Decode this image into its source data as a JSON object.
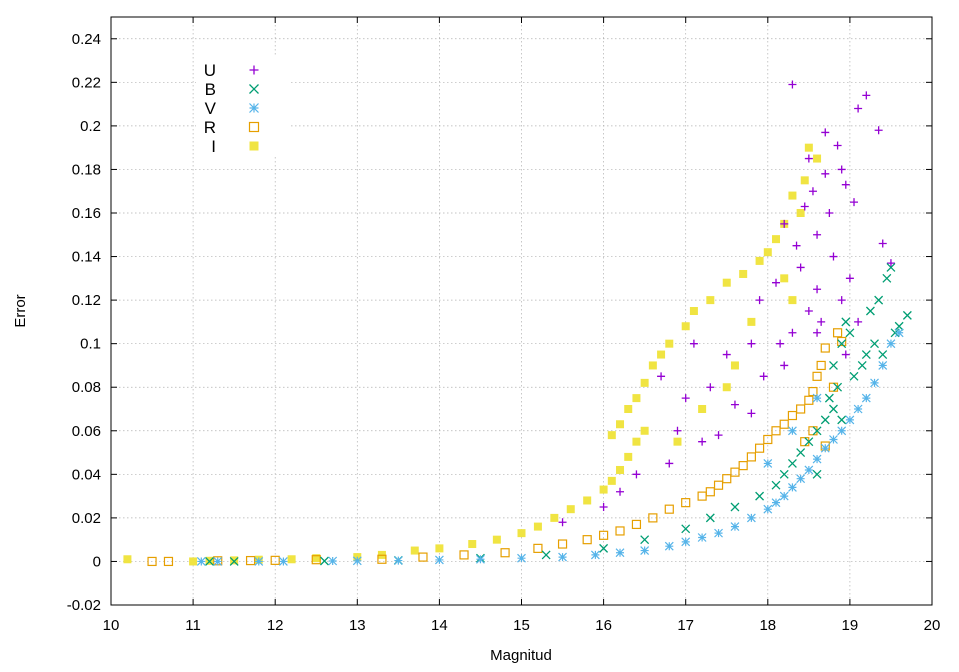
{
  "chart_data": {
    "type": "scatter",
    "title": "",
    "xlabel": "Magnitud",
    "ylabel": "Error",
    "xlim": [
      10,
      20
    ],
    "ylim": [
      -0.02,
      0.25
    ],
    "grid": true,
    "x_ticks": [
      "10",
      "11",
      "12",
      "13",
      "14",
      "15",
      "16",
      "17",
      "18",
      "19",
      "20"
    ],
    "y_ticks": [
      "-0.02",
      "0",
      "0.02",
      "0.04",
      "0.06",
      "0.08",
      "0.1",
      "0.12",
      "0.14",
      "0.16",
      "0.18",
      "0.2",
      "0.22",
      "0.24"
    ],
    "legend_position": "top-left",
    "series": [
      {
        "name": "U",
        "marker": "plus",
        "color": "#9400d3",
        "points": [
          [
            18.3,
            0.219
          ],
          [
            19.2,
            0.214
          ],
          [
            19.1,
            0.208
          ],
          [
            19.35,
            0.198
          ],
          [
            18.7,
            0.197
          ],
          [
            18.85,
            0.191
          ],
          [
            19.4,
            0.146
          ],
          [
            19.5,
            0.137
          ],
          [
            18.9,
            0.18
          ],
          [
            18.95,
            0.173
          ],
          [
            18.55,
            0.17
          ],
          [
            18.45,
            0.163
          ],
          [
            18.75,
            0.16
          ],
          [
            18.2,
            0.155
          ],
          [
            18.6,
            0.15
          ],
          [
            18.8,
            0.14
          ],
          [
            18.4,
            0.135
          ],
          [
            19.0,
            0.13
          ],
          [
            18.9,
            0.12
          ],
          [
            18.1,
            0.128
          ],
          [
            17.9,
            0.12
          ],
          [
            18.65,
            0.11
          ],
          [
            18.3,
            0.105
          ],
          [
            17.8,
            0.1
          ],
          [
            17.1,
            0.1
          ],
          [
            17.5,
            0.095
          ],
          [
            16.7,
            0.085
          ],
          [
            17.3,
            0.08
          ],
          [
            17.0,
            0.075
          ],
          [
            17.6,
            0.072
          ],
          [
            17.8,
            0.068
          ],
          [
            16.9,
            0.06
          ],
          [
            17.4,
            0.058
          ],
          [
            16.4,
            0.04
          ],
          [
            16.8,
            0.045
          ],
          [
            16.0,
            0.025
          ],
          [
            15.5,
            0.018
          ],
          [
            16.2,
            0.032
          ],
          [
            17.2,
            0.055
          ],
          [
            18.2,
            0.09
          ],
          [
            18.5,
            0.115
          ],
          [
            18.6,
            0.125
          ],
          [
            18.7,
            0.178
          ],
          [
            18.35,
            0.145
          ],
          [
            19.05,
            0.165
          ],
          [
            18.95,
            0.095
          ],
          [
            18.5,
            0.185
          ],
          [
            18.6,
            0.105
          ],
          [
            19.1,
            0.11
          ],
          [
            18.15,
            0.1
          ],
          [
            17.95,
            0.085
          ]
        ]
      },
      {
        "name": "B",
        "marker": "cross",
        "color": "#009e73",
        "points": [
          [
            19.7,
            0.113
          ],
          [
            19.6,
            0.108
          ],
          [
            19.55,
            0.105
          ],
          [
            19.45,
            0.13
          ],
          [
            19.5,
            0.135
          ],
          [
            19.35,
            0.12
          ],
          [
            19.25,
            0.115
          ],
          [
            19.3,
            0.1
          ],
          [
            19.4,
            0.095
          ],
          [
            19.15,
            0.09
          ],
          [
            19.05,
            0.085
          ],
          [
            18.95,
            0.11
          ],
          [
            19.0,
            0.105
          ],
          [
            18.9,
            0.1
          ],
          [
            18.85,
            0.08
          ],
          [
            18.75,
            0.075
          ],
          [
            18.8,
            0.07
          ],
          [
            18.7,
            0.065
          ],
          [
            18.6,
            0.06
          ],
          [
            18.5,
            0.055
          ],
          [
            18.4,
            0.05
          ],
          [
            18.3,
            0.045
          ],
          [
            18.2,
            0.04
          ],
          [
            18.1,
            0.035
          ],
          [
            17.9,
            0.03
          ],
          [
            17.6,
            0.025
          ],
          [
            17.3,
            0.02
          ],
          [
            17.0,
            0.015
          ],
          [
            16.5,
            0.01
          ],
          [
            16.0,
            0.006
          ],
          [
            15.3,
            0.003
          ],
          [
            14.5,
            0.0015
          ],
          [
            13.5,
            0.0005
          ],
          [
            12.6,
            0.0002
          ],
          [
            11.5,
            0.0
          ],
          [
            11.2,
            0.0
          ],
          [
            18.6,
            0.04
          ],
          [
            18.9,
            0.065
          ],
          [
            19.2,
            0.095
          ],
          [
            18.8,
            0.09
          ]
        ]
      },
      {
        "name": "V",
        "marker": "star",
        "color": "#56b4e9",
        "points": [
          [
            19.6,
            0.105
          ],
          [
            19.5,
            0.1
          ],
          [
            19.4,
            0.09
          ],
          [
            19.3,
            0.082
          ],
          [
            19.2,
            0.075
          ],
          [
            19.1,
            0.07
          ],
          [
            19.0,
            0.065
          ],
          [
            18.9,
            0.06
          ],
          [
            18.8,
            0.056
          ],
          [
            18.7,
            0.052
          ],
          [
            18.6,
            0.047
          ],
          [
            18.5,
            0.042
          ],
          [
            18.4,
            0.038
          ],
          [
            18.3,
            0.034
          ],
          [
            18.2,
            0.03
          ],
          [
            18.1,
            0.027
          ],
          [
            18.0,
            0.024
          ],
          [
            17.8,
            0.02
          ],
          [
            17.6,
            0.016
          ],
          [
            17.4,
            0.013
          ],
          [
            17.2,
            0.011
          ],
          [
            17.0,
            0.009
          ],
          [
            16.8,
            0.007
          ],
          [
            16.5,
            0.005
          ],
          [
            16.2,
            0.004
          ],
          [
            15.9,
            0.003
          ],
          [
            15.5,
            0.002
          ],
          [
            15.0,
            0.0015
          ],
          [
            14.5,
            0.001
          ],
          [
            14.0,
            0.0007
          ],
          [
            13.5,
            0.0004
          ],
          [
            13.0,
            0.0003
          ],
          [
            12.7,
            0.0002
          ],
          [
            12.1,
            0.0
          ],
          [
            11.8,
            0.0
          ],
          [
            11.3,
            0.0
          ],
          [
            11.1,
            0.0
          ],
          [
            18.3,
            0.06
          ],
          [
            18.0,
            0.045
          ],
          [
            18.6,
            0.075
          ]
        ]
      },
      {
        "name": "R",
        "marker": "square-open",
        "color": "#e69f00",
        "points": [
          [
            18.85,
            0.105
          ],
          [
            18.9,
            0.101
          ],
          [
            18.7,
            0.098
          ],
          [
            18.65,
            0.09
          ],
          [
            18.6,
            0.085
          ],
          [
            18.8,
            0.08
          ],
          [
            18.55,
            0.078
          ],
          [
            18.5,
            0.074
          ],
          [
            18.4,
            0.07
          ],
          [
            18.3,
            0.067
          ],
          [
            18.2,
            0.063
          ],
          [
            18.1,
            0.06
          ],
          [
            18.0,
            0.056
          ],
          [
            17.9,
            0.052
          ],
          [
            17.8,
            0.048
          ],
          [
            17.7,
            0.044
          ],
          [
            17.6,
            0.041
          ],
          [
            17.5,
            0.038
          ],
          [
            17.4,
            0.035
          ],
          [
            17.3,
            0.032
          ],
          [
            17.2,
            0.03
          ],
          [
            17.0,
            0.027
          ],
          [
            16.8,
            0.024
          ],
          [
            16.6,
            0.02
          ],
          [
            16.4,
            0.017
          ],
          [
            16.2,
            0.014
          ],
          [
            16.0,
            0.012
          ],
          [
            15.8,
            0.01
          ],
          [
            15.5,
            0.008
          ],
          [
            15.2,
            0.006
          ],
          [
            14.8,
            0.004
          ],
          [
            14.3,
            0.003
          ],
          [
            13.8,
            0.002
          ],
          [
            13.3,
            0.001
          ],
          [
            12.5,
            0.0008
          ],
          [
            12.0,
            0.0005
          ],
          [
            11.7,
            0.0004
          ],
          [
            11.3,
            0.0003
          ],
          [
            10.7,
            0.0
          ],
          [
            10.5,
            0.0
          ],
          [
            18.7,
            0.053
          ],
          [
            18.55,
            0.06
          ],
          [
            18.45,
            0.055
          ]
        ]
      },
      {
        "name": "I",
        "marker": "square-filled",
        "color": "#f0e442",
        "points": [
          [
            18.5,
            0.19
          ],
          [
            18.6,
            0.185
          ],
          [
            18.45,
            0.175
          ],
          [
            18.3,
            0.168
          ],
          [
            18.4,
            0.16
          ],
          [
            18.2,
            0.155
          ],
          [
            18.1,
            0.148
          ],
          [
            18.0,
            0.142
          ],
          [
            17.9,
            0.138
          ],
          [
            17.7,
            0.132
          ],
          [
            17.5,
            0.128
          ],
          [
            17.3,
            0.12
          ],
          [
            17.1,
            0.115
          ],
          [
            17.0,
            0.108
          ],
          [
            16.8,
            0.1
          ],
          [
            16.7,
            0.095
          ],
          [
            16.6,
            0.09
          ],
          [
            16.5,
            0.082
          ],
          [
            16.4,
            0.075
          ],
          [
            16.3,
            0.07
          ],
          [
            16.2,
            0.063
          ],
          [
            16.1,
            0.058
          ],
          [
            16.5,
            0.06
          ],
          [
            16.4,
            0.055
          ],
          [
            16.3,
            0.048
          ],
          [
            16.2,
            0.042
          ],
          [
            16.1,
            0.037
          ],
          [
            16.0,
            0.033
          ],
          [
            15.8,
            0.028
          ],
          [
            15.6,
            0.024
          ],
          [
            15.4,
            0.02
          ],
          [
            15.2,
            0.016
          ],
          [
            15.0,
            0.013
          ],
          [
            14.7,
            0.01
          ],
          [
            14.4,
            0.008
          ],
          [
            14.0,
            0.006
          ],
          [
            13.7,
            0.005
          ],
          [
            13.3,
            0.003
          ],
          [
            13.0,
            0.002
          ],
          [
            12.5,
            0.0015
          ],
          [
            12.2,
            0.001
          ],
          [
            11.8,
            0.0008
          ],
          [
            11.5,
            0.0005
          ],
          [
            11.2,
            0.0003
          ],
          [
            11.0,
            0.0
          ],
          [
            10.2,
            0.001
          ],
          [
            17.5,
            0.08
          ],
          [
            17.8,
            0.11
          ],
          [
            18.3,
            0.12
          ],
          [
            17.2,
            0.07
          ],
          [
            16.9,
            0.055
          ],
          [
            17.6,
            0.09
          ],
          [
            18.2,
            0.13
          ]
        ]
      }
    ]
  }
}
